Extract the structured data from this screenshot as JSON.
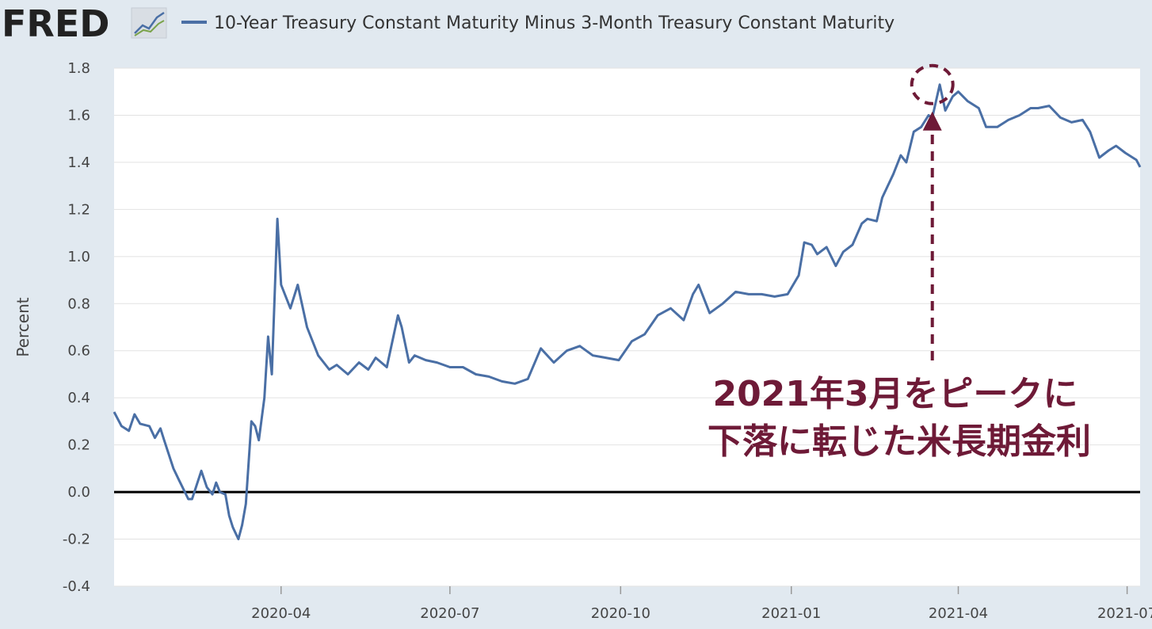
{
  "header": {
    "logo_text": "FRED",
    "logo_icon": "chart-line-icon"
  },
  "colors": {
    "series": "#4a6fa5",
    "annotation": "#6e1a37",
    "background": "#e1e9f0",
    "plot_background": "#ffffff",
    "zero_line": "#000000"
  },
  "chart_data": {
    "type": "line",
    "ylabel": "Percent",
    "ylim": [
      -0.4,
      1.8
    ],
    "yticks": [
      "1.8",
      "1.6",
      "1.4",
      "1.2",
      "1.0",
      "0.8",
      "0.6",
      "0.4",
      "0.2",
      "0.0",
      "-0.2",
      "-0.4"
    ],
    "xticks": [
      "2020-04",
      "2020-07",
      "2020-10",
      "2021-01",
      "2021-04",
      "2021-07"
    ],
    "xlim": [
      "2020-01-02",
      "2021-07-08"
    ],
    "grid": true,
    "legend_placement": "top-left",
    "series": [
      {
        "name": "10-Year Treasury Constant Maturity Minus 3-Month Treasury Constant Maturity",
        "x": [
          "2020-01-02",
          "2020-01-06",
          "2020-01-10",
          "2020-01-13",
          "2020-01-16",
          "2020-01-21",
          "2020-01-24",
          "2020-01-27",
          "2020-01-29",
          "2020-02-03",
          "2020-02-06",
          "2020-02-11",
          "2020-02-13",
          "2020-02-18",
          "2020-02-21",
          "2020-02-24",
          "2020-02-26",
          "2020-02-28",
          "2020-03-02",
          "2020-03-04",
          "2020-03-06",
          "2020-03-09",
          "2020-03-11",
          "2020-03-13",
          "2020-03-16",
          "2020-03-18",
          "2020-03-20",
          "2020-03-23",
          "2020-03-25",
          "2020-03-27",
          "2020-03-30",
          "2020-04-01",
          "2020-04-06",
          "2020-04-10",
          "2020-04-15",
          "2020-04-21",
          "2020-04-27",
          "2020-05-01",
          "2020-05-07",
          "2020-05-13",
          "2020-05-18",
          "2020-05-22",
          "2020-05-28",
          "2020-06-03",
          "2020-06-05",
          "2020-06-09",
          "2020-06-12",
          "2020-06-18",
          "2020-06-24",
          "2020-07-01",
          "2020-07-08",
          "2020-07-15",
          "2020-07-22",
          "2020-07-29",
          "2020-08-05",
          "2020-08-12",
          "2020-08-19",
          "2020-08-26",
          "2020-09-02",
          "2020-09-09",
          "2020-09-16",
          "2020-09-23",
          "2020-09-30",
          "2020-10-07",
          "2020-10-14",
          "2020-10-21",
          "2020-10-28",
          "2020-11-04",
          "2020-11-09",
          "2020-11-12",
          "2020-11-18",
          "2020-11-25",
          "2020-12-02",
          "2020-12-09",
          "2020-12-16",
          "2020-12-23",
          "2020-12-30",
          "2021-01-05",
          "2021-01-08",
          "2021-01-12",
          "2021-01-15",
          "2021-01-20",
          "2021-01-25",
          "2021-01-29",
          "2021-02-03",
          "2021-02-08",
          "2021-02-11",
          "2021-02-16",
          "2021-02-19",
          "2021-02-22",
          "2021-02-25",
          "2021-03-01",
          "2021-03-04",
          "2021-03-08",
          "2021-03-12",
          "2021-03-16",
          "2021-03-18",
          "2021-03-22",
          "2021-03-25",
          "2021-03-29",
          "2021-04-01",
          "2021-04-06",
          "2021-04-12",
          "2021-04-16",
          "2021-04-22",
          "2021-04-28",
          "2021-05-04",
          "2021-05-10",
          "2021-05-14",
          "2021-05-20",
          "2021-05-26",
          "2021-06-01",
          "2021-06-07",
          "2021-06-11",
          "2021-06-16",
          "2021-06-21",
          "2021-06-25",
          "2021-06-30",
          "2021-07-06",
          "2021-07-08"
        ],
        "values": [
          0.34,
          0.28,
          0.26,
          0.33,
          0.29,
          0.28,
          0.23,
          0.27,
          0.22,
          0.1,
          0.05,
          -0.03,
          -0.03,
          0.09,
          0.02,
          -0.01,
          0.04,
          0.0,
          -0.01,
          -0.1,
          -0.15,
          -0.2,
          -0.14,
          -0.05,
          0.3,
          0.28,
          0.22,
          0.4,
          0.66,
          0.5,
          1.16,
          0.88,
          0.78,
          0.88,
          0.7,
          0.58,
          0.52,
          0.54,
          0.5,
          0.55,
          0.52,
          0.57,
          0.53,
          0.75,
          0.7,
          0.55,
          0.58,
          0.56,
          0.55,
          0.53,
          0.53,
          0.5,
          0.49,
          0.47,
          0.46,
          0.48,
          0.61,
          0.55,
          0.6,
          0.62,
          0.58,
          0.57,
          0.56,
          0.64,
          0.67,
          0.75,
          0.78,
          0.73,
          0.84,
          0.88,
          0.76,
          0.8,
          0.85,
          0.84,
          0.84,
          0.83,
          0.84,
          0.92,
          1.06,
          1.05,
          1.01,
          1.04,
          0.96,
          1.02,
          1.05,
          1.14,
          1.16,
          1.15,
          1.25,
          1.3,
          1.35,
          1.43,
          1.4,
          1.53,
          1.55,
          1.6,
          1.59,
          1.73,
          1.62,
          1.68,
          1.7,
          1.66,
          1.63,
          1.55,
          1.55,
          1.58,
          1.6,
          1.63,
          1.63,
          1.64,
          1.59,
          1.57,
          1.58,
          1.53,
          1.42,
          1.45,
          1.47,
          1.44,
          1.41,
          1.38
        ]
      }
    ],
    "annotations": [
      {
        "text_line1": "2021年3月をピークに",
        "text_line2": "下落に転じた米長期金利",
        "target_x": "2021-03-18",
        "target_y": 1.73
      }
    ]
  }
}
